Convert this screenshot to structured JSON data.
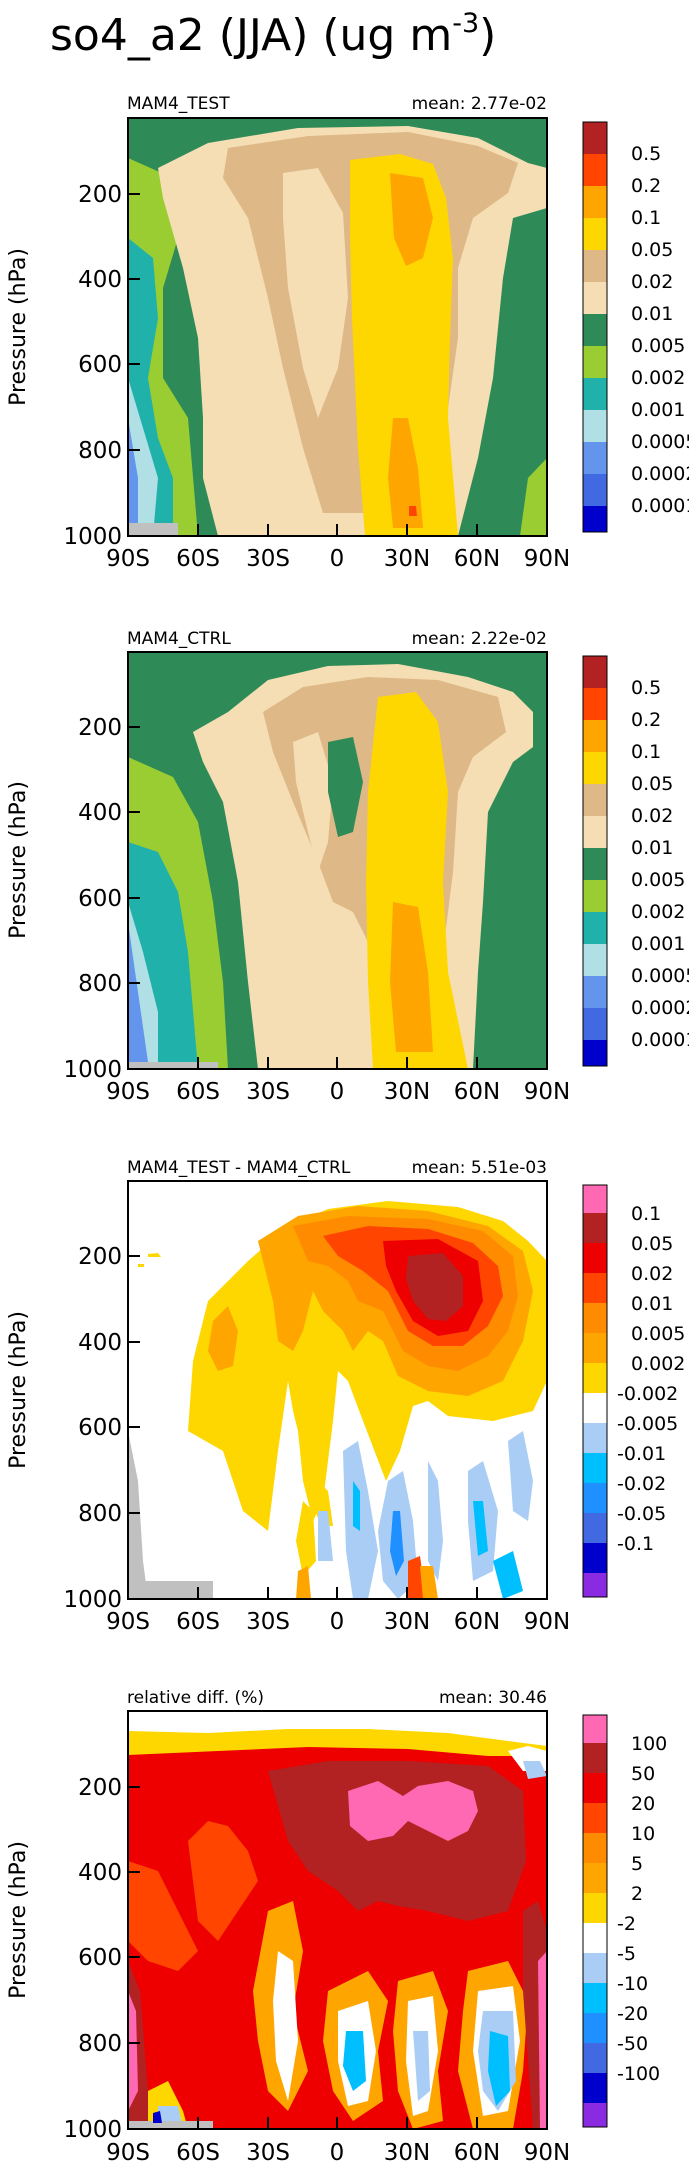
{
  "figure": {
    "title": "so4_a2 (JJA) (ug m",
    "title_exp": "-3",
    "title_close": ")"
  },
  "chart_data": [
    {
      "type": "heatmap",
      "title": "MAM4_TEST",
      "mean_label": "mean: 2.77e-02",
      "ylabel": "Pressure (hPa)",
      "xticks": [
        "90S",
        "60S",
        "30S",
        "0",
        "30N",
        "60N",
        "90N"
      ],
      "yticks": [
        "200",
        "400",
        "600",
        "800",
        "1000"
      ],
      "levels": [
        "0.5",
        "0.2",
        "0.1",
        "0.05",
        "0.02",
        "0.01",
        "0.005",
        "0.002",
        "0.001",
        "0.0005",
        "0.0002",
        "0.0001"
      ],
      "colors": [
        "#b22222",
        "#ff4500",
        "#ffa500",
        "#ffd700",
        "#deb887",
        "#f5deb3",
        "#2e8b57",
        "#9acd32",
        "#20b2aa",
        "#b0e0e6",
        "#6495ed",
        "#4169e1",
        "#0000cd"
      ]
    },
    {
      "type": "heatmap",
      "title": "MAM4_CTRL",
      "mean_label": "mean: 2.22e-02",
      "ylabel": "Pressure (hPa)",
      "xticks": [
        "90S",
        "60S",
        "30S",
        "0",
        "30N",
        "60N",
        "90N"
      ],
      "yticks": [
        "200",
        "400",
        "600",
        "800",
        "1000"
      ],
      "levels": [
        "0.5",
        "0.2",
        "0.1",
        "0.05",
        "0.02",
        "0.01",
        "0.005",
        "0.002",
        "0.001",
        "0.0005",
        "0.0002",
        "0.0001"
      ],
      "colors": [
        "#b22222",
        "#ff4500",
        "#ffa500",
        "#ffd700",
        "#deb887",
        "#f5deb3",
        "#2e8b57",
        "#9acd32",
        "#20b2aa",
        "#b0e0e6",
        "#6495ed",
        "#4169e1",
        "#0000cd"
      ]
    },
    {
      "type": "heatmap",
      "title": "MAM4_TEST - MAM4_CTRL",
      "mean_label": "mean: 5.51e-03",
      "ylabel": "Pressure (hPa)",
      "xticks": [
        "90S",
        "60S",
        "30S",
        "0",
        "30N",
        "60N",
        "90N"
      ],
      "yticks": [
        "200",
        "400",
        "600",
        "800",
        "1000"
      ],
      "levels": [
        "0.1",
        "0.05",
        "0.02",
        "0.01",
        "0.005",
        "0.002",
        "-0.002",
        "-0.005",
        "-0.01",
        "-0.02",
        "-0.05",
        "-0.1"
      ],
      "colors": [
        "#ff69b4",
        "#b22222",
        "#ee0000",
        "#ff4500",
        "#ff8c00",
        "#ffa500",
        "#ffd700",
        "#ffffff",
        "#a9cdf5",
        "#00bfff",
        "#1e90ff",
        "#4169e1",
        "#0000cd",
        "#8a2be2"
      ]
    },
    {
      "type": "heatmap",
      "title": "relative diff. (%)",
      "mean_label": "mean: 30.46",
      "ylabel": "Pressure (hPa)",
      "xticks": [
        "90S",
        "60S",
        "30S",
        "0",
        "30N",
        "60N",
        "90N"
      ],
      "yticks": [
        "200",
        "400",
        "600",
        "800",
        "1000"
      ],
      "levels": [
        "100",
        "50",
        "20",
        "10",
        "5",
        "2",
        "-2",
        "-5",
        "-10",
        "-20",
        "-50",
        "-100"
      ],
      "colors": [
        "#ff69b4",
        "#b22222",
        "#ee0000",
        "#ff4500",
        "#ff8c00",
        "#ffa500",
        "#ffd700",
        "#ffffff",
        "#a9cdf5",
        "#00bfff",
        "#1e90ff",
        "#4169e1",
        "#0000cd",
        "#8a2be2"
      ]
    }
  ]
}
